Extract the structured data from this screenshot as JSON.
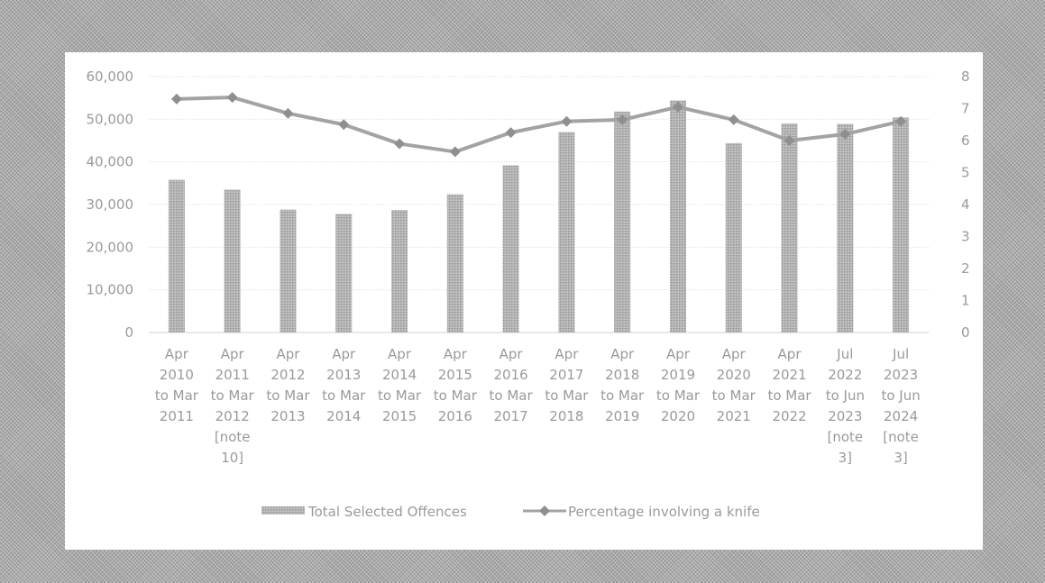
{
  "chart_data": {
    "type": "bar",
    "categories": [
      [
        "Apr",
        "2010",
        "to Mar",
        "2011"
      ],
      [
        "Apr",
        "2011",
        "to Mar",
        "2012",
        "[note",
        "10]"
      ],
      [
        "Apr",
        "2012",
        "to Mar",
        "2013"
      ],
      [
        "Apr",
        "2013",
        "to Mar",
        "2014"
      ],
      [
        "Apr",
        "2014",
        "to Mar",
        "2015"
      ],
      [
        "Apr",
        "2015",
        "to Mar",
        "2016"
      ],
      [
        "Apr",
        "2016",
        "to Mar",
        "2017"
      ],
      [
        "Apr",
        "2017",
        "to Mar",
        "2018"
      ],
      [
        "Apr",
        "2018",
        "to Mar",
        "2019"
      ],
      [
        "Apr",
        "2019",
        "to Mar",
        "2020"
      ],
      [
        "Apr",
        "2020",
        "to Mar",
        "2021"
      ],
      [
        "Apr",
        "2021",
        "to Mar",
        "2022"
      ],
      [
        "Jul",
        "2022",
        "to Jun",
        "2023",
        "[note",
        "3]"
      ],
      [
        "Jul",
        "2023",
        "to Jun",
        "2024",
        "[note",
        "3]"
      ]
    ],
    "series": [
      {
        "name": "Total Selected Offences",
        "type": "bar",
        "axis": "left",
        "values": [
          35800,
          33500,
          28800,
          27800,
          28700,
          32400,
          39200,
          47000,
          51800,
          54400,
          44400,
          49000,
          48900,
          50400
        ]
      },
      {
        "name": "Percentage involving a knife",
        "type": "line",
        "axis": "right",
        "values": [
          7.3,
          7.35,
          6.85,
          6.5,
          5.9,
          5.65,
          6.25,
          6.6,
          6.65,
          7.05,
          6.65,
          6.0,
          6.2,
          6.6
        ]
      }
    ],
    "y_left": {
      "min": 0,
      "max": 60000,
      "ticks": [
        "0",
        "10,000",
        "20,000",
        "30,000",
        "40,000",
        "50,000",
        "60,000"
      ]
    },
    "y_right": {
      "min": 0,
      "max": 8,
      "ticks": [
        "0",
        "1",
        "2",
        "3",
        "4",
        "5",
        "6",
        "7",
        "8"
      ]
    },
    "grid": true,
    "legend": "bottom",
    "colors": {
      "bar": "#a3a3a3",
      "line": "#a3a3a3",
      "grid": "#e3e3e3",
      "text": "#9a9a9a"
    }
  }
}
